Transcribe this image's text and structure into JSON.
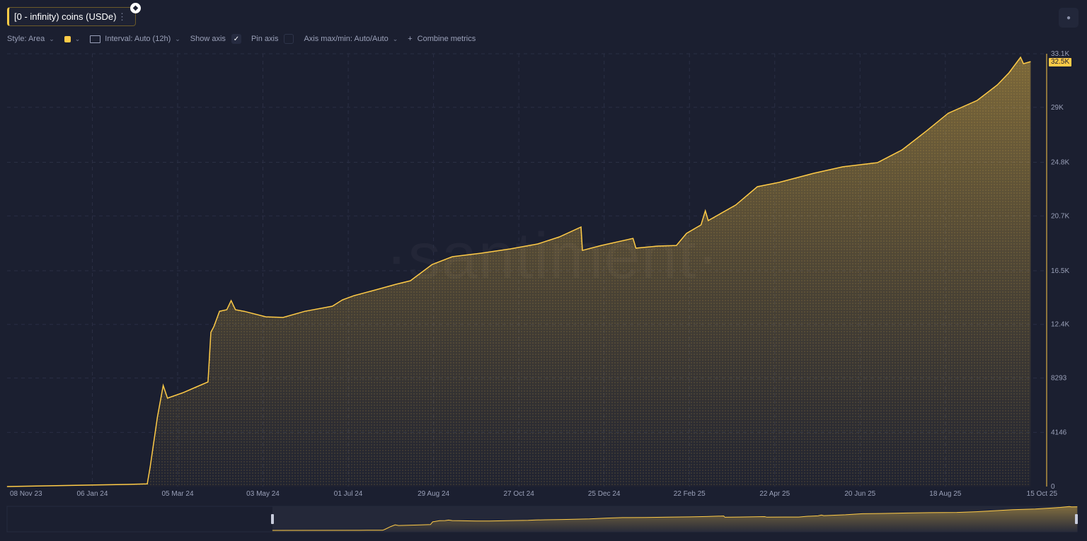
{
  "metric": {
    "label": "[0 - infinity) coins (USDe)",
    "menu_icon": "more-vertical-icon",
    "asset_icon": "ethereum-icon"
  },
  "toolbar": {
    "style": "Style: Area",
    "interval": "Interval: Auto (12h)",
    "show_axis": "Show axis",
    "show_axis_checked": true,
    "pin_axis": "Pin axis",
    "pin_axis_checked": false,
    "axis_minmax": "Axis max/min: Auto/Auto",
    "combine": "Combine metrics"
  },
  "watermark": "·santiment·",
  "colors": {
    "background": "#1b1f30",
    "line": "#ffcb47",
    "area": "#ffcb47",
    "grid": "#2a2f44"
  },
  "chart_data": {
    "type": "area",
    "grid": true,
    "ylim": [
      0,
      33100
    ],
    "xlim": [
      "2023-11-08",
      "2025-10-16"
    ],
    "y_ticks": [
      "0",
      "4146",
      "8293",
      "12.4K",
      "16.5K",
      "20.7K",
      "24.8K",
      "29K",
      "33.1K"
    ],
    "y_tick_values": [
      0,
      4146,
      8293,
      12400,
      16500,
      20700,
      24800,
      29000,
      33100
    ],
    "x_ticks": [
      "08 Nov 23",
      "06 Jan 24",
      "05 Mar 24",
      "03 May 24",
      "01 Jul 24",
      "29 Aug 24",
      "27 Oct 24",
      "25 Dec 24",
      "22 Feb 25",
      "22 Apr 25",
      "20 Jun 25",
      "18 Aug 25",
      "15 Oct 25"
    ],
    "x_tick_dates": [
      "2023-11-08",
      "2024-01-06",
      "2024-03-05",
      "2024-05-03",
      "2024-07-01",
      "2024-08-29",
      "2024-10-27",
      "2024-12-25",
      "2025-02-22",
      "2025-04-22",
      "2025-06-20",
      "2025-08-18",
      "2025-10-15"
    ],
    "last_value_label": "32.5K",
    "points": [
      [
        "2023-11-08",
        0
      ],
      [
        "2024-01-30",
        160
      ],
      [
        "2024-02-13",
        200
      ],
      [
        "2024-02-15",
        1500
      ],
      [
        "2024-02-20",
        5300
      ],
      [
        "2024-02-24",
        7730
      ],
      [
        "2024-02-27",
        6760
      ],
      [
        "2024-03-09",
        7190
      ],
      [
        "2024-03-17",
        7570
      ],
      [
        "2024-03-26",
        8000
      ],
      [
        "2024-03-28",
        11800
      ],
      [
        "2024-03-30",
        12220
      ],
      [
        "2024-04-03",
        13400
      ],
      [
        "2024-04-08",
        13520
      ],
      [
        "2024-04-11",
        14220
      ],
      [
        "2024-04-14",
        13520
      ],
      [
        "2024-04-20",
        13400
      ],
      [
        "2024-05-05",
        12980
      ],
      [
        "2024-05-17",
        12930
      ],
      [
        "2024-06-01",
        13400
      ],
      [
        "2024-06-20",
        13790
      ],
      [
        "2024-06-27",
        14280
      ],
      [
        "2024-07-05",
        14600
      ],
      [
        "2024-07-20",
        15040
      ],
      [
        "2024-08-03",
        15470
      ],
      [
        "2024-08-13",
        15740
      ],
      [
        "2024-08-28",
        16980
      ],
      [
        "2024-09-11",
        17580
      ],
      [
        "2024-10-01",
        17850
      ],
      [
        "2024-10-21",
        18170
      ],
      [
        "2024-11-09",
        18550
      ],
      [
        "2024-11-24",
        19090
      ],
      [
        "2024-12-09",
        19850
      ],
      [
        "2024-12-10",
        18060
      ],
      [
        "2024-12-23",
        18440
      ],
      [
        "2025-01-14",
        18980
      ],
      [
        "2025-01-16",
        18230
      ],
      [
        "2025-01-31",
        18390
      ],
      [
        "2025-02-13",
        18440
      ],
      [
        "2025-02-20",
        19360
      ],
      [
        "2025-03-02",
        20010
      ],
      [
        "2025-03-05",
        21090
      ],
      [
        "2025-03-07",
        20340
      ],
      [
        "2025-03-26",
        21530
      ],
      [
        "2025-04-10",
        22930
      ],
      [
        "2025-04-25",
        23260
      ],
      [
        "2025-05-19",
        23960
      ],
      [
        "2025-06-08",
        24450
      ],
      [
        "2025-07-02",
        24770
      ],
      [
        "2025-07-19",
        25740
      ],
      [
        "2025-08-05",
        27200
      ],
      [
        "2025-08-20",
        28550
      ],
      [
        "2025-09-09",
        29530
      ],
      [
        "2025-09-23",
        30720
      ],
      [
        "2025-10-01",
        31640
      ],
      [
        "2025-10-09",
        32830
      ],
      [
        "2025-10-11",
        32340
      ],
      [
        "2025-10-16",
        32500
      ]
    ]
  }
}
